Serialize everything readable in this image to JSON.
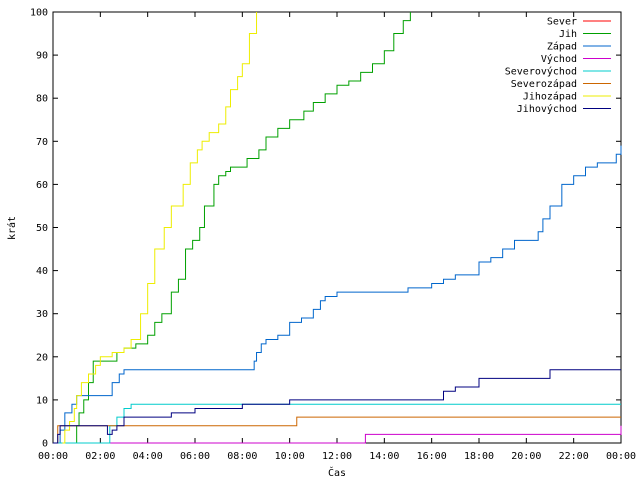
{
  "chart_data": {
    "type": "line",
    "xlabel": "Čas",
    "ylabel": "krát",
    "xlim": [
      0,
      24
    ],
    "ylim": [
      0,
      100
    ],
    "x_tick_labels": [
      "00:00",
      "02:00",
      "04:00",
      "06:00",
      "08:00",
      "10:00",
      "12:00",
      "14:00",
      "16:00",
      "18:00",
      "20:00",
      "22:00",
      "00:00"
    ],
    "y_ticks": [
      0,
      10,
      20,
      30,
      40,
      50,
      60,
      70,
      80,
      90,
      100
    ],
    "legend_position": "top-right",
    "grid": false,
    "series": [
      {
        "name": "Sever",
        "color": "#ff0000",
        "x": [],
        "y": []
      },
      {
        "name": "Jih",
        "color": "#00a000",
        "x": [
          0.9,
          1.0,
          1.1,
          1.3,
          1.5,
          1.7,
          2.1,
          2.5,
          2.7,
          3.0,
          3.5,
          4.0,
          4.3,
          4.6,
          5.0,
          5.3,
          5.6,
          5.9,
          6.2,
          6.4,
          6.8,
          7.0,
          7.3,
          7.5,
          7.7,
          8.2,
          8.7,
          9.0,
          9.5,
          10.0,
          10.6,
          11.0,
          11.5,
          12.0,
          12.5,
          13.0,
          13.5,
          14.0,
          14.4,
          14.8,
          15.1
        ],
        "y": [
          0,
          4,
          7,
          10,
          14,
          19,
          19,
          19,
          21,
          22,
          23,
          25,
          28,
          30,
          35,
          38,
          45,
          47,
          50,
          55,
          60,
          62,
          63,
          64,
          64,
          66,
          68,
          71,
          73,
          75,
          77,
          79,
          81,
          83,
          84,
          86,
          88,
          91,
          95,
          98,
          100
        ]
      },
      {
        "name": "Západ",
        "color": "#0066cc",
        "x": [
          0,
          0.3,
          0.5,
          0.8,
          1.0,
          2.0,
          2.5,
          2.8,
          3.0,
          7.0,
          8.5,
          8.6,
          8.8,
          9.0,
          9.5,
          10.0,
          10.2,
          10.5,
          11.0,
          11.3,
          11.5,
          12.0,
          13.0,
          15.0,
          16.0,
          16.5,
          17.0,
          18.0,
          18.5,
          19.0,
          19.5,
          20.0,
          20.5,
          20.7,
          21.0,
          21.5,
          22.0,
          22.5,
          23.0,
          23.8,
          24.0
        ],
        "y": [
          0,
          3,
          7,
          9,
          11,
          11,
          14,
          16,
          17,
          17,
          19,
          21,
          23,
          24,
          25,
          28,
          28,
          29,
          31,
          33,
          34,
          35,
          35,
          36,
          37,
          38,
          39,
          42,
          43,
          45,
          47,
          47,
          49,
          52,
          55,
          60,
          62,
          64,
          65,
          67,
          69
        ]
      },
      {
        "name": "Východ",
        "color": "#cc00cc",
        "x": [
          0,
          13.2,
          23.0,
          24.0
        ],
        "y": [
          0,
          2,
          2,
          4
        ]
      },
      {
        "name": "Severovýchod",
        "color": "#00cccc",
        "x": [
          0,
          2.4,
          2.7,
          3.0,
          3.3,
          24.0
        ],
        "y": [
          0,
          4,
          6,
          8,
          9,
          9
        ]
      },
      {
        "name": "Severozápad",
        "color": "#cc6600",
        "x": [
          0,
          0.2,
          10.2,
          10.3,
          24.0
        ],
        "y": [
          0,
          4,
          4,
          6,
          6
        ]
      },
      {
        "name": "Jihozápad",
        "color": "#eeee00",
        "x": [
          0.4,
          0.5,
          0.7,
          0.9,
          1.0,
          1.2,
          1.5,
          1.8,
          2.0,
          2.5,
          3.0,
          3.3,
          3.7,
          4.0,
          4.3,
          4.7,
          5.0,
          5.5,
          5.8,
          6.1,
          6.3,
          6.6,
          7.0,
          7.3,
          7.5,
          7.8,
          8.0,
          8.3,
          8.6
        ],
        "y": [
          0,
          3,
          5,
          8,
          11,
          14,
          16,
          18,
          20,
          21,
          22,
          24,
          30,
          37,
          45,
          50,
          55,
          60,
          65,
          68,
          70,
          72,
          74,
          78,
          82,
          85,
          88,
          95,
          100
        ]
      },
      {
        "name": "Jihovýchod",
        "color": "#000080",
        "x": [
          0,
          0.2,
          0.3,
          1.8,
          2.3,
          2.5,
          2.7,
          3.0,
          4.0,
          5.0,
          6.0,
          8.0,
          9.8,
          10.0,
          13.0,
          16.5,
          17.0,
          18.0,
          19.0,
          20.0,
          21.0,
          22.0,
          24.0
        ],
        "y": [
          0,
          2,
          4,
          4,
          2,
          3,
          4,
          6,
          6,
          7,
          8,
          9,
          9,
          10,
          10,
          12,
          13,
          15,
          15,
          15,
          17,
          17,
          17
        ]
      }
    ]
  }
}
